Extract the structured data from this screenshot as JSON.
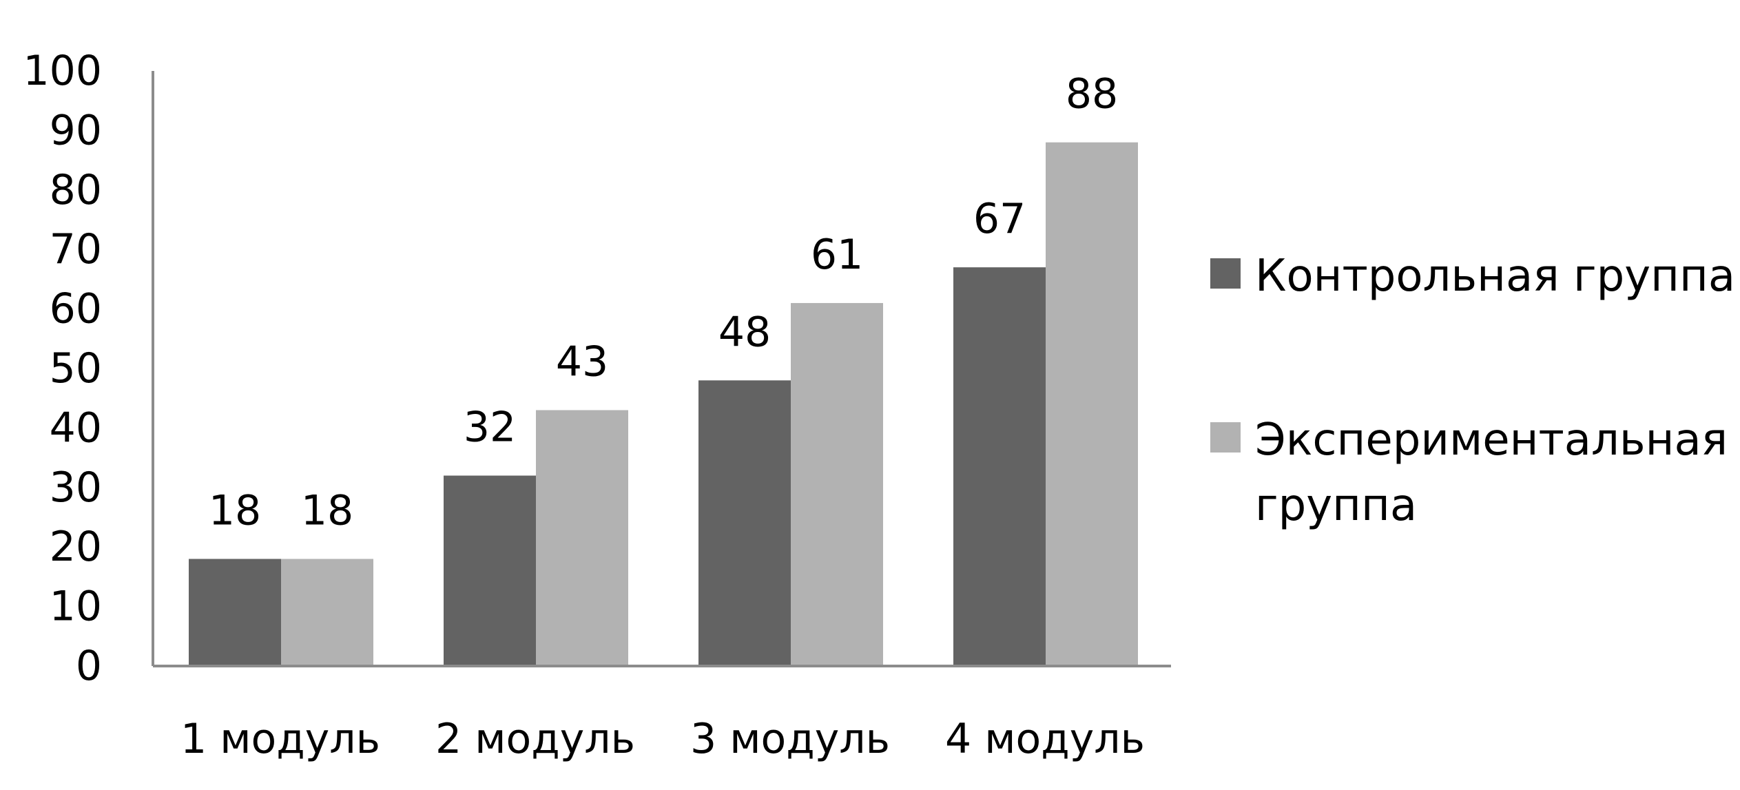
{
  "chart_data": {
    "type": "bar",
    "categories": [
      "1 модуль",
      "2 модуль",
      "3 модуль",
      "4 модуль"
    ],
    "series": [
      {
        "name": "Контрольная группа",
        "values": [
          18,
          32,
          48,
          67
        ],
        "color": "#636363"
      },
      {
        "name": "Экспериментальная группа",
        "values": [
          18,
          43,
          61,
          88
        ],
        "color": "#b2b2b2"
      }
    ],
    "legend_lines": [
      [
        "Контрольная группа"
      ],
      [
        "Экспериментальная",
        "группа"
      ]
    ],
    "title": "",
    "xlabel": "",
    "ylabel": "",
    "ylim": [
      0,
      100
    ],
    "yticks": [
      0,
      10,
      20,
      30,
      40,
      50,
      60,
      70,
      80,
      90,
      100
    ],
    "data_labels": true,
    "grid": false,
    "legend_position": "right",
    "axis_color": "#8c8c8c"
  }
}
